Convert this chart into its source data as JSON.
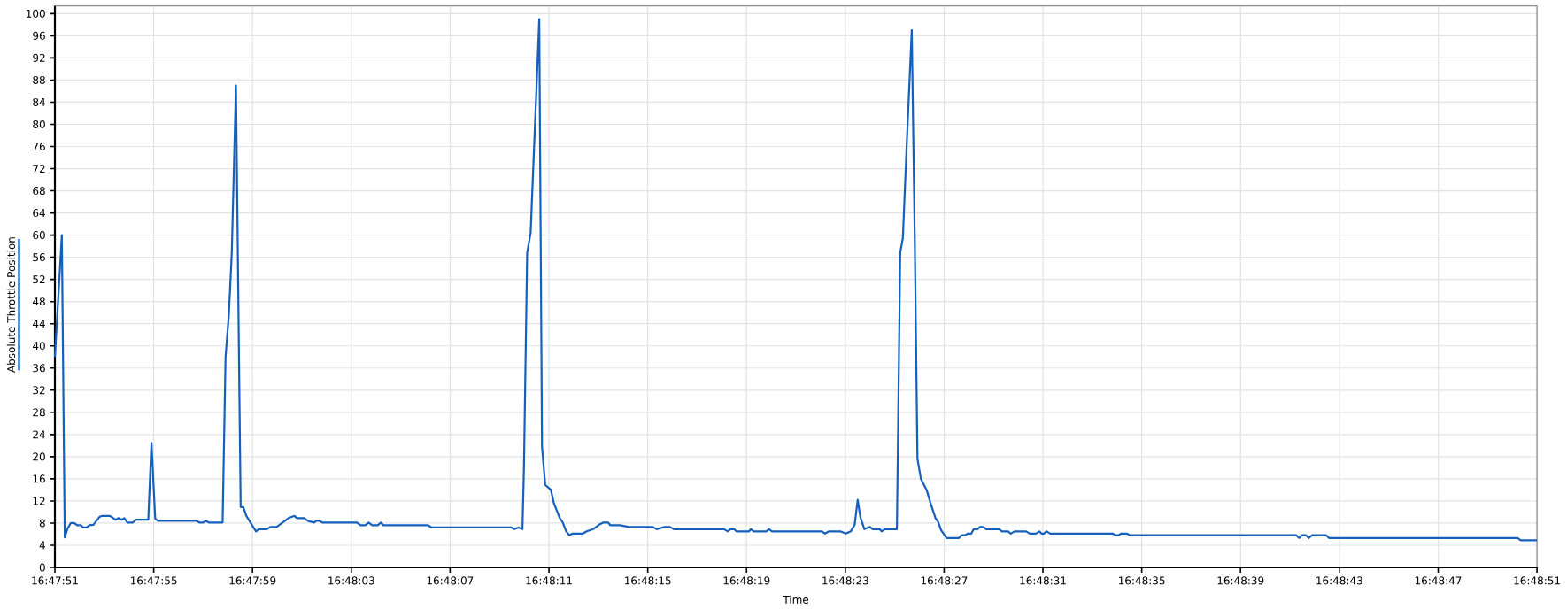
{
  "chart_data": {
    "type": "line",
    "xlabel": "Time",
    "ylabel": "Absolute Throttle Position",
    "xlim": [
      16.7975,
      16.814167
    ],
    "ylim": [
      0,
      101.4
    ],
    "xticks": [
      {
        "value": 16.7975,
        "label": "16:47:51"
      },
      {
        "value": 16.798611,
        "label": "16:47:55"
      },
      {
        "value": 16.799722,
        "label": "16:47:59"
      },
      {
        "value": 16.800833,
        "label": "16:48:03"
      },
      {
        "value": 16.801944,
        "label": "16:48:07"
      },
      {
        "value": 16.803056,
        "label": "16:48:11"
      },
      {
        "value": 16.804167,
        "label": "16:48:15"
      },
      {
        "value": 16.805278,
        "label": "16:48:19"
      },
      {
        "value": 16.806389,
        "label": "16:48:23"
      },
      {
        "value": 16.8075,
        "label": "16:48:27"
      },
      {
        "value": 16.808611,
        "label": "16:48:31"
      },
      {
        "value": 16.809722,
        "label": "16:48:35"
      },
      {
        "value": 16.810833,
        "label": "16:48:39"
      },
      {
        "value": 16.811944,
        "label": "16:48:43"
      },
      {
        "value": 16.813056,
        "label": "16:48:47"
      },
      {
        "value": 16.814167,
        "label": "16:48:51"
      }
    ],
    "yticks": [
      0,
      4,
      8,
      12,
      16,
      20,
      24,
      28,
      32,
      36,
      40,
      44,
      48,
      52,
      56,
      60,
      64,
      68,
      72,
      76,
      80,
      84,
      88,
      92,
      96,
      100
    ],
    "grid": true,
    "x": [
      16.7975,
      16.797578,
      16.797611,
      16.797642,
      16.797678,
      16.797717,
      16.79775,
      16.797794,
      16.797817,
      16.797858,
      16.797889,
      16.797933,
      16.798,
      16.798031,
      16.798119,
      16.798183,
      16.798217,
      16.79825,
      16.798281,
      16.798314,
      16.798378,
      16.798408,
      16.79855,
      16.798586,
      16.798628,
      16.798658,
      16.799092,
      16.799125,
      16.799167,
      16.7992,
      16.799231,
      16.799386,
      16.799419,
      16.799456,
      16.799489,
      16.799536,
      16.799589,
      16.799619,
      16.799653,
      16.799761,
      16.799792,
      16.799883,
      16.799922,
      16.799992,
      16.800128,
      16.800194,
      16.800222,
      16.800303,
      16.800344,
      16.800414,
      16.800439,
      16.800475,
      16.800508,
      16.800897,
      16.800936,
      16.800992,
      16.801028,
      16.801067,
      16.801131,
      16.801167,
      16.801194,
      16.801697,
      16.801736,
      16.802636,
      16.802667,
      16.802714,
      16.802758,
      16.802775,
      16.802811,
      16.80285,
      16.802947,
      16.802978,
      16.803014,
      16.803078,
      16.803111,
      16.803178,
      16.803208,
      16.80325,
      16.803286,
      16.803317,
      16.803436,
      16.803481,
      16.803553,
      16.803619,
      16.803669,
      16.803722,
      16.803747,
      16.803856,
      16.803956,
      16.804225,
      16.804267,
      16.804353,
      16.804419,
      16.804461,
      16.805025,
      16.805067,
      16.805097,
      16.805139,
      16.805164,
      16.805306,
      16.805328,
      16.805358,
      16.8055,
      16.805531,
      16.805564,
      16.806128,
      16.806161,
      16.806206,
      16.806333,
      16.806394,
      16.80645,
      16.806494,
      16.806528,
      16.806558,
      16.806603,
      16.806667,
      16.806697,
      16.806775,
      16.806797,
      16.806833,
      16.806969,
      16.807006,
      16.807036,
      16.807078,
      16.807136,
      16.807169,
      16.8072,
      16.807239,
      16.807303,
      16.807347,
      16.807403,
      16.807433,
      16.807467,
      16.807528,
      16.807667,
      16.807694,
      16.807736,
      16.807764,
      16.807806,
      16.807833,
      16.807875,
      16.807903,
      16.807944,
      16.807972,
      16.808119,
      16.80815,
      16.808219,
      16.80825,
      16.808292,
      16.808422,
      16.808464,
      16.808531,
      16.808572,
      16.808594,
      16.808625,
      16.80865,
      16.808694,
      16.809394,
      16.809431,
      16.809461,
      16.809489,
      16.809558,
      16.809589,
      16.811461,
      16.811492,
      16.811522,
      16.811569,
      16.8116,
      16.811636,
      16.811794,
      16.811831,
      16.81395,
      16.813983,
      16.814167
    ],
    "series": [
      {
        "color": "#1560bd",
        "values": [
          38,
          60,
          5.4,
          7,
          8,
          8,
          7.6,
          7.6,
          7.2,
          7.2,
          7.6,
          7.7,
          9.1,
          9.3,
          9.3,
          8.6,
          8.9,
          8.6,
          8.9,
          8.1,
          8.1,
          8.6,
          8.6,
          22.5,
          8.8,
          8.4,
          8.4,
          8.1,
          8.1,
          8.4,
          8.1,
          8.1,
          38,
          45.6,
          56.8,
          87,
          10.9,
          10.9,
          9.3,
          6.5,
          6.9,
          6.9,
          7.3,
          7.3,
          8.9,
          9.3,
          8.9,
          8.9,
          8.4,
          8.1,
          8.4,
          8.4,
          8.1,
          8.1,
          7.6,
          7.6,
          8.1,
          7.6,
          7.6,
          8.1,
          7.6,
          7.6,
          7.2,
          7.2,
          6.9,
          7.2,
          6.9,
          18.2,
          56.8,
          60.4,
          99,
          21.8,
          14.9,
          14,
          11.6,
          8.9,
          8.2,
          6.5,
          5.8,
          6.1,
          6.1,
          6.5,
          6.9,
          7.7,
          8.1,
          8.1,
          7.6,
          7.6,
          7.3,
          7.3,
          6.9,
          7.3,
          7.3,
          6.9,
          6.9,
          6.5,
          6.9,
          6.9,
          6.5,
          6.5,
          6.9,
          6.5,
          6.5,
          6.9,
          6.5,
          6.5,
          6.1,
          6.5,
          6.5,
          6.1,
          6.5,
          7.7,
          12.2,
          9.1,
          6.9,
          7.3,
          6.9,
          6.9,
          6.5,
          6.9,
          6.9,
          56.8,
          59.5,
          75.8,
          97,
          60.4,
          19.6,
          16,
          14,
          11.6,
          8.9,
          8.2,
          6.7,
          5.3,
          5.3,
          5.8,
          5.8,
          6.1,
          6.1,
          6.9,
          6.9,
          7.3,
          7.3,
          6.9,
          6.9,
          6.5,
          6.5,
          6.1,
          6.5,
          6.5,
          6.1,
          6.1,
          6.5,
          6.1,
          6.1,
          6.5,
          6.1,
          6.1,
          5.8,
          5.8,
          6.1,
          6.1,
          5.8,
          5.8,
          5.3,
          5.8,
          5.8,
          5.3,
          5.8,
          5.8,
          5.3,
          5.3,
          4.9,
          4.9
        ]
      }
    ]
  }
}
